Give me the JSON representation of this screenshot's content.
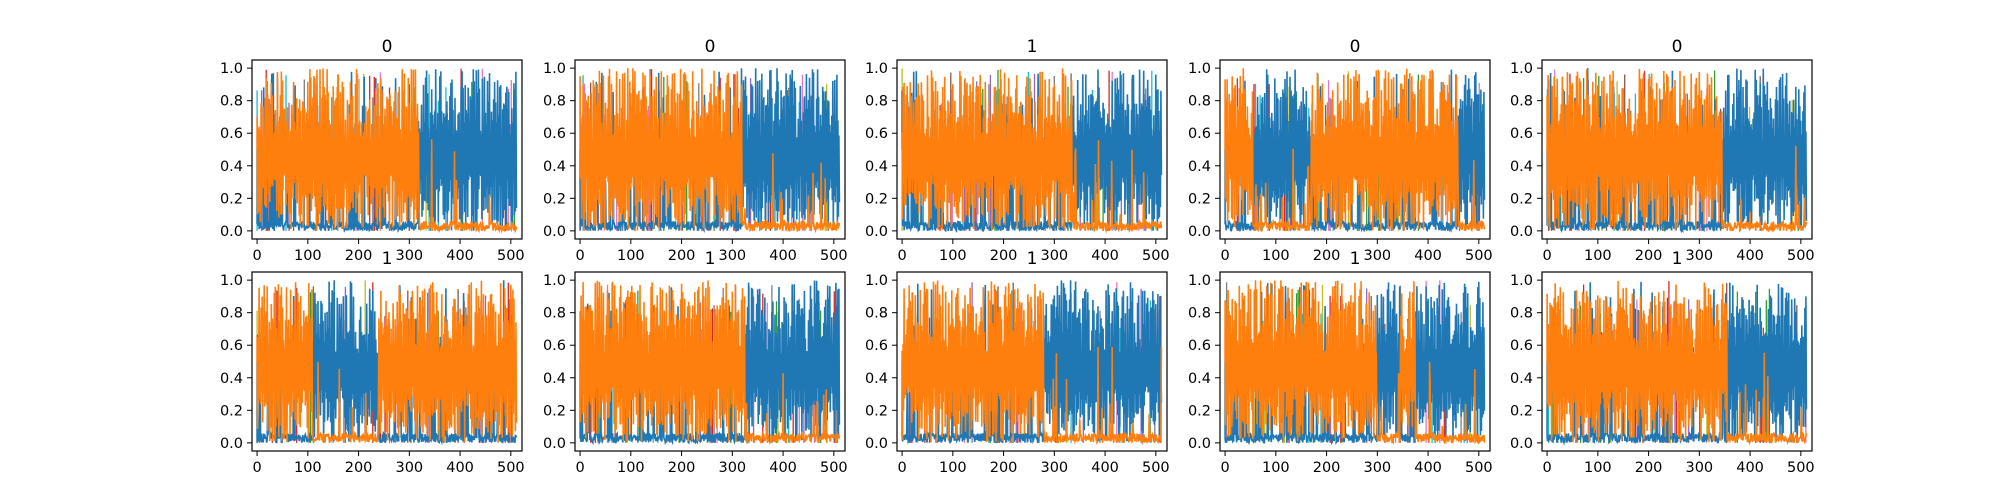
{
  "chart_data": {
    "type": "line",
    "layout": {
      "rows": 2,
      "cols": 5
    },
    "xlim": [
      -10,
      522
    ],
    "ylim": [
      -0.05,
      1.05
    ],
    "xticks": [
      0,
      100,
      200,
      300,
      400,
      500
    ],
    "yticks": [
      0.0,
      0.2,
      0.4,
      0.6,
      0.8,
      1.0
    ],
    "xtick_labels": [
      "0",
      "100",
      "200",
      "300",
      "400",
      "500"
    ],
    "ytick_labels": [
      "0.0",
      "0.2",
      "0.4",
      "0.6",
      "0.8",
      "1.0"
    ],
    "series_colors": {
      "class_a": "#ff7f0e",
      "class_b": "#1f77b4",
      "minor": [
        "#17becf",
        "#2ca02c",
        "#bcbd22",
        "#9467bd",
        "#e377c2",
        "#d62728",
        "#8c564b",
        "#7f7f7f"
      ]
    },
    "x_points": 512,
    "panels": [
      {
        "title": "0",
        "segments": [
          [
            0,
            320,
            "class_a"
          ],
          [
            320,
            512,
            "class_b"
          ]
        ]
      },
      {
        "title": "0",
        "segments": [
          [
            0,
            320,
            "class_a"
          ],
          [
            320,
            512,
            "class_b"
          ]
        ]
      },
      {
        "title": "1",
        "segments": [
          [
            0,
            335,
            "class_a"
          ],
          [
            335,
            512,
            "class_b"
          ]
        ]
      },
      {
        "title": "0",
        "segments": [
          [
            0,
            55,
            "class_a"
          ],
          [
            55,
            170,
            "class_b"
          ],
          [
            170,
            460,
            "class_a"
          ],
          [
            460,
            512,
            "class_b"
          ]
        ]
      },
      {
        "title": "0",
        "segments": [
          [
            0,
            345,
            "class_a"
          ],
          [
            345,
            512,
            "class_b"
          ]
        ]
      },
      {
        "title": "1",
        "segments": [
          [
            0,
            110,
            "class_a"
          ],
          [
            110,
            240,
            "class_b"
          ],
          [
            240,
            512,
            "class_a"
          ]
        ]
      },
      {
        "title": "1",
        "segments": [
          [
            0,
            325,
            "class_a"
          ],
          [
            325,
            512,
            "class_b"
          ]
        ]
      },
      {
        "title": "1",
        "segments": [
          [
            0,
            280,
            "class_a"
          ],
          [
            280,
            512,
            "class_b"
          ]
        ]
      },
      {
        "title": "1",
        "segments": [
          [
            0,
            300,
            "class_a"
          ],
          [
            300,
            345,
            "class_b"
          ],
          [
            345,
            375,
            "class_a"
          ],
          [
            375,
            512,
            "class_b"
          ]
        ]
      },
      {
        "title": "1",
        "segments": [
          [
            0,
            355,
            "class_a"
          ],
          [
            355,
            512,
            "class_b"
          ]
        ]
      }
    ]
  }
}
